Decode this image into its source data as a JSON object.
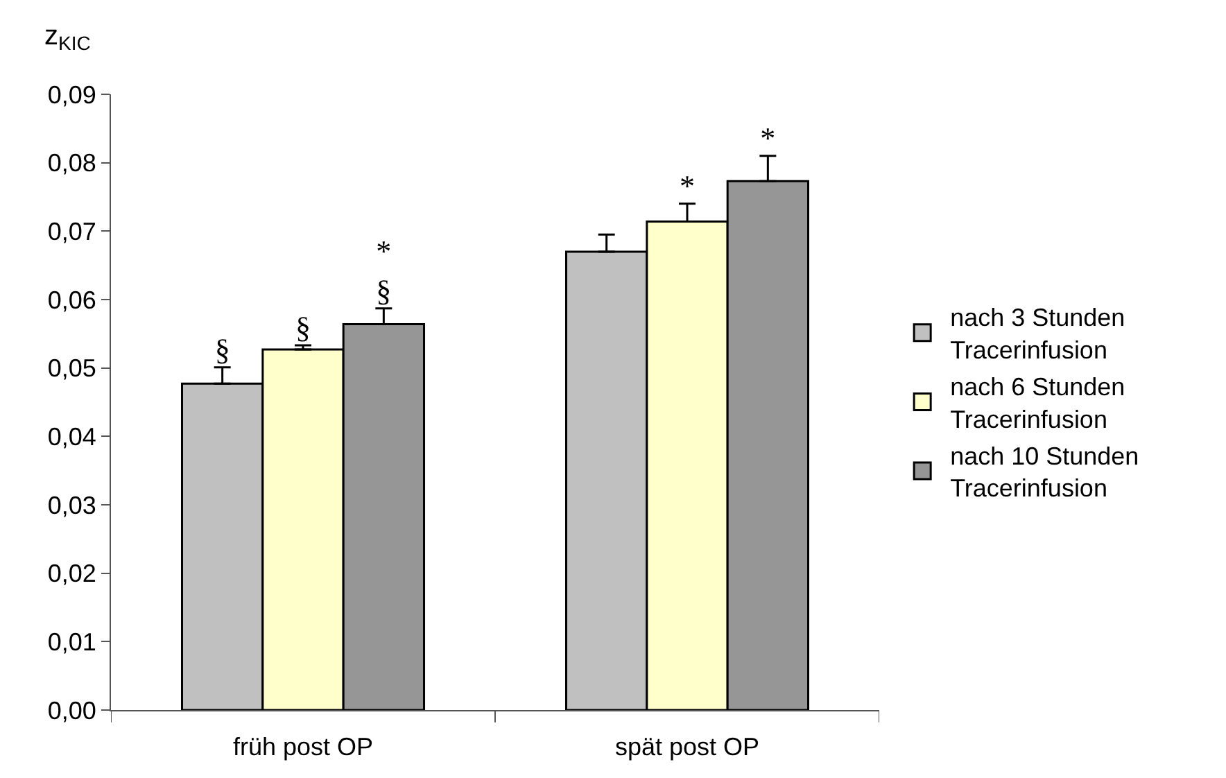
{
  "chart_data": {
    "type": "bar",
    "ylabel": "z$_{KIC}$",
    "categories": [
      "früh post OP",
      "spät post OP"
    ],
    "series": [
      {
        "name": "nach 3 Stunden Tracerinfusion",
        "color": "#c0c0c0",
        "values": [
          0.0477,
          0.067
        ],
        "errors": [
          [
            0.0477,
            0.0501
          ],
          [
            0.067,
            0.0695
          ]
        ],
        "value_labels": [
          "§",
          null
        ]
      },
      {
        "name": "nach 6 Stunden Tracerinfusion",
        "color": "#ffffcc",
        "values": [
          0.0527,
          0.0714
        ],
        "errors": [
          [
            0.0527,
            0.0533
          ],
          [
            0.0714,
            0.074
          ]
        ],
        "value_labels": [
          "§",
          "*"
        ]
      },
      {
        "name": "nach 10 Stunden Tracerinfusion",
        "color": "#969696",
        "values": [
          0.0564,
          0.0773
        ],
        "errors": [
          [
            0.0564,
            0.0587
          ],
          [
            0.0773,
            0.081
          ]
        ],
        "value_labels": [
          "*\n§",
          "*"
        ]
      }
    ],
    "ylim": [
      0,
      0.09
    ],
    "yticks": [
      {
        "value": 0,
        "label": "0,00"
      },
      {
        "value": 0.01,
        "label": "0,01"
      },
      {
        "value": 0.02,
        "label": "0,02"
      },
      {
        "value": 0.03,
        "label": "0,03"
      },
      {
        "value": 0.04,
        "label": "0,04"
      },
      {
        "value": 0.05,
        "label": "0,05"
      },
      {
        "value": 0.06,
        "label": "0,06"
      },
      {
        "value": 0.07,
        "label": "0,07"
      },
      {
        "value": 0.08,
        "label": "0,08"
      },
      {
        "value": 0.09,
        "label": "0,09"
      }
    ],
    "legend": "right"
  }
}
